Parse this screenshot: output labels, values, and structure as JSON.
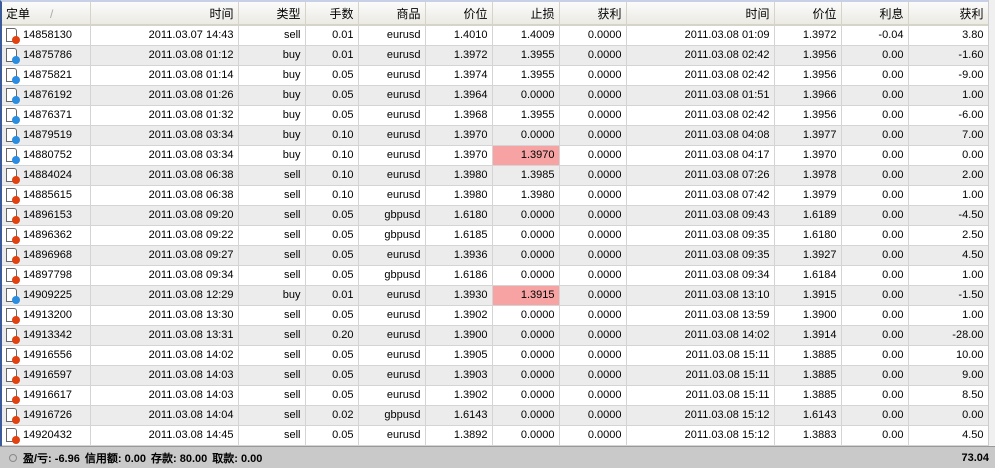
{
  "headers": [
    "定单",
    "时间",
    "类型",
    "手数",
    "商品",
    "价位",
    "止损",
    "获利",
    "时间",
    "价位",
    "利息",
    "获利"
  ],
  "sort_indicator": "/",
  "rows": [
    [
      "14858130",
      "2011.03.07 14:43",
      "sell",
      "0.01",
      "eurusd",
      "1.4010",
      "1.4009",
      "0.0000",
      "2011.03.08 01:09",
      "1.3972",
      "-0.04",
      "3.80"
    ],
    [
      "14875786",
      "2011.03.08 01:12",
      "buy",
      "0.01",
      "eurusd",
      "1.3972",
      "1.3955",
      "0.0000",
      "2011.03.08 02:42",
      "1.3956",
      "0.00",
      "-1.60"
    ],
    [
      "14875821",
      "2011.03.08 01:14",
      "buy",
      "0.05",
      "eurusd",
      "1.3974",
      "1.3955",
      "0.0000",
      "2011.03.08 02:42",
      "1.3956",
      "0.00",
      "-9.00"
    ],
    [
      "14876192",
      "2011.03.08 01:26",
      "buy",
      "0.05",
      "eurusd",
      "1.3964",
      "0.0000",
      "0.0000",
      "2011.03.08 01:51",
      "1.3966",
      "0.00",
      "1.00"
    ],
    [
      "14876371",
      "2011.03.08 01:32",
      "buy",
      "0.05",
      "eurusd",
      "1.3968",
      "1.3955",
      "0.0000",
      "2011.03.08 02:42",
      "1.3956",
      "0.00",
      "-6.00"
    ],
    [
      "14879519",
      "2011.03.08 03:34",
      "buy",
      "0.10",
      "eurusd",
      "1.3970",
      "0.0000",
      "0.0000",
      "2011.03.08 04:08",
      "1.3977",
      "0.00",
      "7.00"
    ],
    [
      "14880752",
      "2011.03.08 03:34",
      "buy",
      "0.10",
      "eurusd",
      "1.3970",
      "1.3970",
      "0.0000",
      "2011.03.08 04:17",
      "1.3970",
      "0.00",
      "0.00"
    ],
    [
      "14884024",
      "2011.03.08 06:38",
      "sell",
      "0.10",
      "eurusd",
      "1.3980",
      "1.3985",
      "0.0000",
      "2011.03.08 07:26",
      "1.3978",
      "0.00",
      "2.00"
    ],
    [
      "14885615",
      "2011.03.08 06:38",
      "sell",
      "0.10",
      "eurusd",
      "1.3980",
      "1.3980",
      "0.0000",
      "2011.03.08 07:42",
      "1.3979",
      "0.00",
      "1.00"
    ],
    [
      "14896153",
      "2011.03.08 09:20",
      "sell",
      "0.05",
      "gbpusd",
      "1.6180",
      "0.0000",
      "0.0000",
      "2011.03.08 09:43",
      "1.6189",
      "0.00",
      "-4.50"
    ],
    [
      "14896362",
      "2011.03.08 09:22",
      "sell",
      "0.05",
      "gbpusd",
      "1.6185",
      "0.0000",
      "0.0000",
      "2011.03.08 09:35",
      "1.6180",
      "0.00",
      "2.50"
    ],
    [
      "14896968",
      "2011.03.08 09:27",
      "sell",
      "0.05",
      "eurusd",
      "1.3936",
      "0.0000",
      "0.0000",
      "2011.03.08 09:35",
      "1.3927",
      "0.00",
      "4.50"
    ],
    [
      "14897798",
      "2011.03.08 09:34",
      "sell",
      "0.05",
      "gbpusd",
      "1.6186",
      "0.0000",
      "0.0000",
      "2011.03.08 09:34",
      "1.6184",
      "0.00",
      "1.00"
    ],
    [
      "14909225",
      "2011.03.08 12:29",
      "buy",
      "0.01",
      "eurusd",
      "1.3930",
      "1.3915",
      "0.0000",
      "2011.03.08 13:10",
      "1.3915",
      "0.00",
      "-1.50"
    ],
    [
      "14913200",
      "2011.03.08 13:30",
      "sell",
      "0.05",
      "eurusd",
      "1.3902",
      "0.0000",
      "0.0000",
      "2011.03.08 13:59",
      "1.3900",
      "0.00",
      "1.00"
    ],
    [
      "14913342",
      "2011.03.08 13:31",
      "sell",
      "0.20",
      "eurusd",
      "1.3900",
      "0.0000",
      "0.0000",
      "2011.03.08 14:02",
      "1.3914",
      "0.00",
      "-28.00"
    ],
    [
      "14916556",
      "2011.03.08 14:02",
      "sell",
      "0.05",
      "eurusd",
      "1.3905",
      "0.0000",
      "0.0000",
      "2011.03.08 15:11",
      "1.3885",
      "0.00",
      "10.00"
    ],
    [
      "14916597",
      "2011.03.08 14:03",
      "sell",
      "0.05",
      "eurusd",
      "1.3903",
      "0.0000",
      "0.0000",
      "2011.03.08 15:11",
      "1.3885",
      "0.00",
      "9.00"
    ],
    [
      "14916617",
      "2011.03.08 14:03",
      "sell",
      "0.05",
      "eurusd",
      "1.3902",
      "0.0000",
      "0.0000",
      "2011.03.08 15:11",
      "1.3885",
      "0.00",
      "8.50"
    ],
    [
      "14916726",
      "2011.03.08 14:04",
      "sell",
      "0.02",
      "gbpusd",
      "1.6143",
      "0.0000",
      "0.0000",
      "2011.03.08 15:12",
      "1.6143",
      "0.00",
      "0.00"
    ],
    [
      "14920432",
      "2011.03.08 14:45",
      "sell",
      "0.05",
      "eurusd",
      "1.3892",
      "0.0000",
      "0.0000",
      "2011.03.08 15:12",
      "1.3883",
      "0.00",
      "4.50"
    ]
  ],
  "highlighted_stop_rows": [
    6,
    13
  ],
  "highlight_color": "#f7a3a3",
  "footer": {
    "pl": "盈/亏: -6.96",
    "credit": "信用额: 0.00",
    "deposit": "存款: 80.00",
    "withdrawal": "取款: 0.00",
    "balance": "73.04"
  }
}
